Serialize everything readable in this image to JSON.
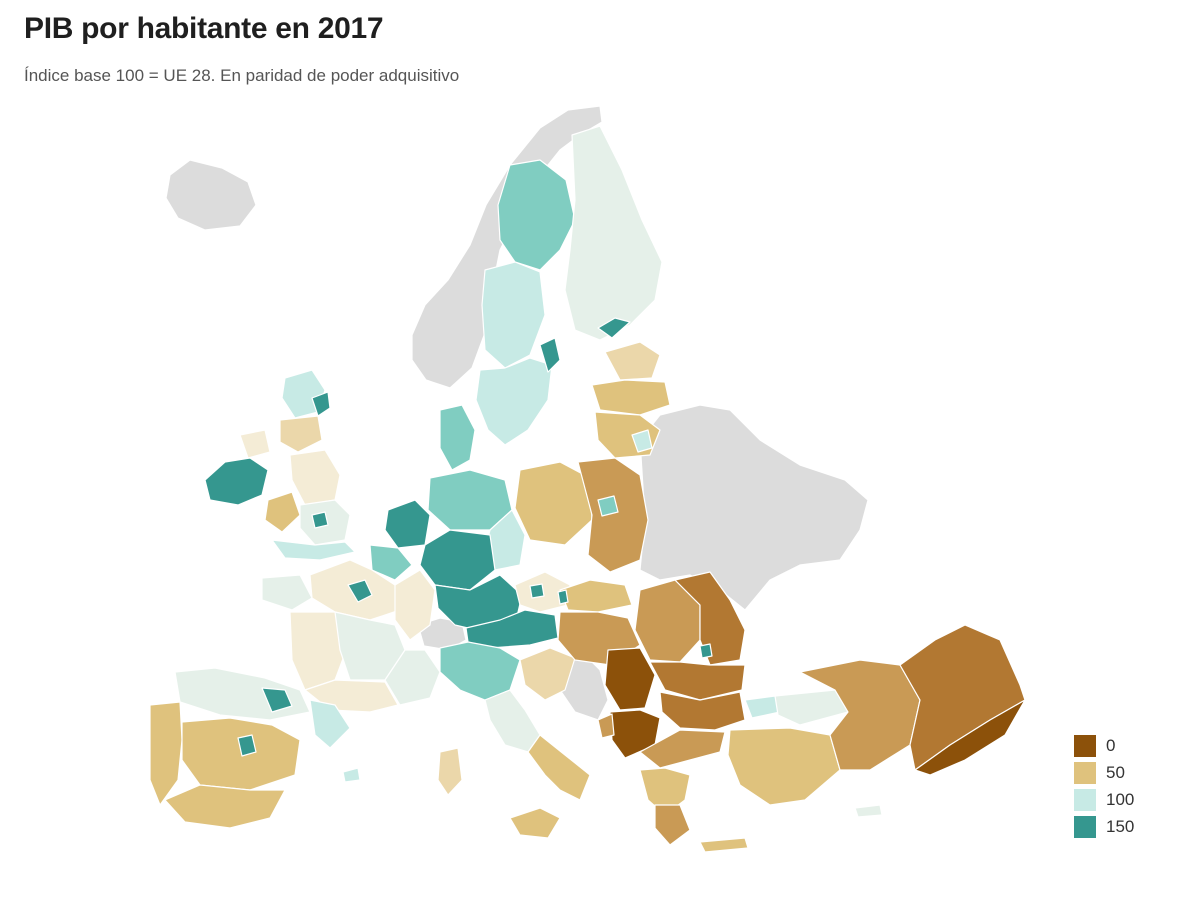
{
  "title": "PIB por habitante en 2017",
  "subtitle": "Índice base 100 = UE 28. En paridad de poder adquisitivo",
  "colors": {
    "nodata": "#dcdcdc",
    "c0": "#8c510a",
    "c25": "#b27832",
    "c40": "#c99a55",
    "c55": "#dfc27d",
    "c70": "#ebd7aa",
    "c85": "#f4ecd6",
    "c95": "#e5f0e9",
    "c100": "#c7eae5",
    "c125": "#80cdc1",
    "c150": "#35978f",
    "border": "#ffffff"
  },
  "legend": {
    "items": [
      {
        "label": "0",
        "color": "#8c510a"
      },
      {
        "label": "50",
        "color": "#dfc27d"
      },
      {
        "label": "100",
        "color": "#c7eae5"
      },
      {
        "label": "150",
        "color": "#35978f"
      }
    ]
  }
}
